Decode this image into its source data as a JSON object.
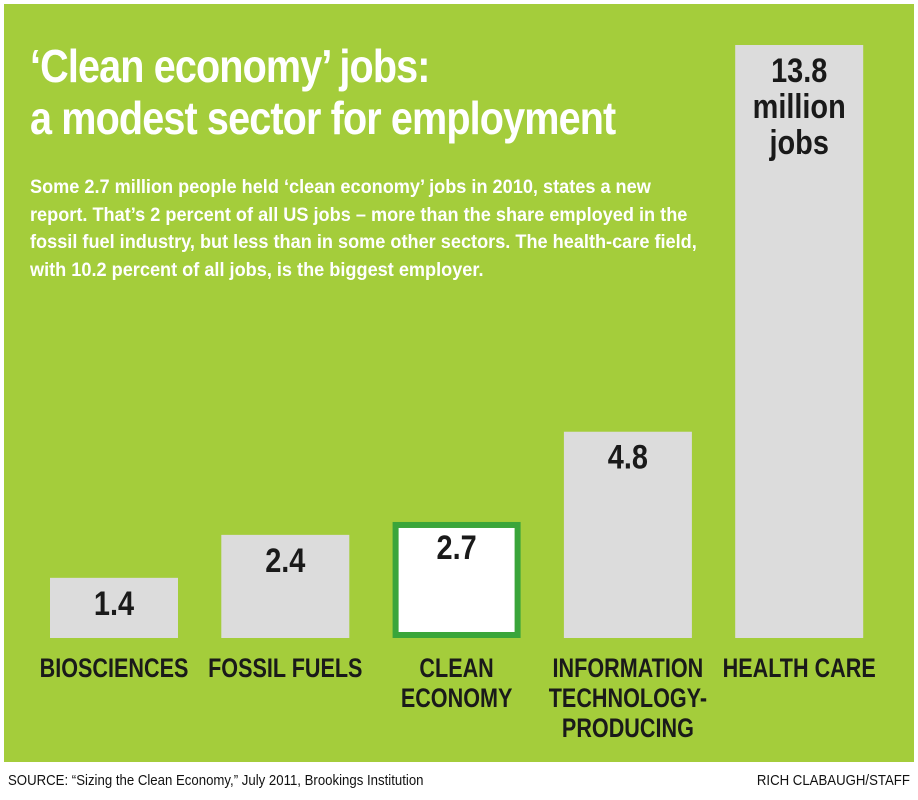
{
  "title_lines": [
    "‘Clean economy’ jobs:",
    "a modest sector for employment"
  ],
  "subtitle": "Some 2.7 million people held ‘clean economy’ jobs in 2010, states a new report. That’s 2 percent of all US jobs – more than the share employed in the fossil fuel industry, but less than in some other sectors. The health-care field, with 10.2 percent of all jobs, is the biggest employer.",
  "source": "SOURCE: “Sizing the Clean Economy,” July 2011, Brookings Institution",
  "credit": "RICH CLABAUGH/STAFF",
  "colors": {
    "background": "#a4cd3b",
    "bar": "#dcdcdc",
    "highlight_fill": "#ffffff",
    "highlight_border": "#3aa53a",
    "text": "#1a1a1a"
  },
  "chart_data": {
    "type": "bar",
    "title": "‘Clean economy’ jobs: a modest sector for employment",
    "unit": "million jobs",
    "categories": [
      [
        "BIOSCIENCES"
      ],
      [
        "FOSSIL FUELS"
      ],
      [
        "CLEAN",
        "ECONOMY"
      ],
      [
        "INFORMATION",
        "TECHNOLOGY-",
        "PRODUCING"
      ],
      [
        "HEALTH CARE"
      ]
    ],
    "values": [
      1.4,
      2.4,
      2.7,
      4.8,
      13.8
    ],
    "data_labels": [
      [
        "1.4"
      ],
      [
        "2.4"
      ],
      [
        "2.7"
      ],
      [
        "4.8"
      ],
      [
        "13.8",
        "million",
        "jobs"
      ]
    ],
    "highlight_index": 2,
    "ylim": [
      0,
      13.8
    ],
    "grid": false
  }
}
